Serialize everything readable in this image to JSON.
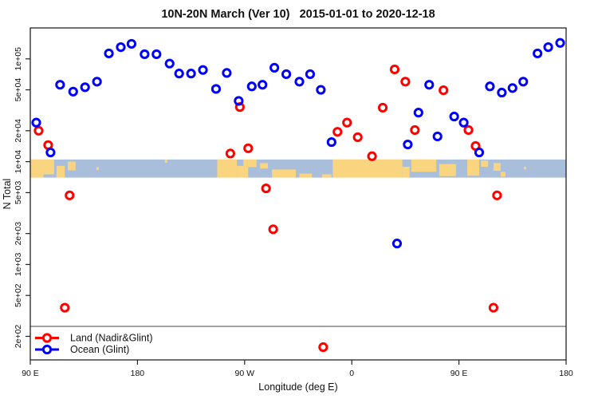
{
  "title": "10N-20N March (Ver 10)   2015-01-01 to 2020-12-18",
  "x_axis": {
    "label": "Longitude (deg E)",
    "domain": [
      90,
      540
    ],
    "ticks": [
      {
        "value": 90,
        "label": "90 E"
      },
      {
        "value": 180,
        "label": "180"
      },
      {
        "value": 270,
        "label": "90 W"
      },
      {
        "value": 360,
        "label": "0"
      },
      {
        "value": 450,
        "label": "90 E"
      },
      {
        "value": 540,
        "label": "180"
      }
    ]
  },
  "y_axis": {
    "label": "N Total",
    "scale": "log",
    "domain": [
      118,
      200000
    ],
    "ticks": [
      {
        "value": 200,
        "label": "2e+02"
      },
      {
        "value": 500,
        "label": "5e+02"
      },
      {
        "value": 1000,
        "label": "1e+03"
      },
      {
        "value": 2000,
        "label": "2e+03"
      },
      {
        "value": 5000,
        "label": "5e+03"
      },
      {
        "value": 10000,
        "label": "1e+04"
      },
      {
        "value": 20000,
        "label": "2e+04"
      },
      {
        "value": 50000,
        "label": "5e+04"
      },
      {
        "value": 100000,
        "label": "1e+05"
      }
    ]
  },
  "legend": {
    "entries": [
      {
        "label": "Land (Nadir&Glint)",
        "color": "#FF0000"
      },
      {
        "label": "Ocean (Glint)",
        "color": "#0000FF"
      }
    ]
  },
  "threshold_line": {
    "value": 250,
    "color": "#444444"
  },
  "map_band": {
    "top_value": 10500,
    "bottom_value": 7000,
    "ocean_color": "#A9BEDB",
    "land_color": "#FAD580",
    "land_patches": [
      [
        90,
        110,
        0,
        0.82
      ],
      [
        90,
        101,
        0.82,
        1
      ],
      [
        112,
        119,
        0.35,
        1
      ],
      [
        121.5,
        128,
        0.12,
        0.6
      ],
      [
        145.5,
        147.5,
        0.42,
        0.58
      ],
      [
        203,
        205,
        0,
        0.18
      ],
      [
        247,
        263.5,
        0,
        1
      ],
      [
        263.5,
        273,
        0.35,
        1
      ],
      [
        269,
        280,
        0,
        0.42
      ],
      [
        283,
        289.5,
        0.2,
        0.5
      ],
      [
        293,
        313,
        0.55,
        1
      ],
      [
        316,
        326.5,
        0.78,
        1
      ],
      [
        335,
        343,
        0.82,
        1
      ],
      [
        344,
        402.5,
        0,
        1
      ],
      [
        402.5,
        408.5,
        0.4,
        1
      ],
      [
        410,
        431,
        0,
        0.68
      ],
      [
        433.5,
        447.5,
        0.25,
        0.92
      ],
      [
        457,
        467,
        0,
        0.9
      ],
      [
        468.5,
        474.5,
        0.05,
        0.4
      ],
      [
        479,
        485,
        0.2,
        0.62
      ],
      [
        485,
        489,
        0.68,
        0.95
      ],
      [
        504.5,
        506.5,
        0.4,
        0.55
      ]
    ]
  },
  "chart_data": {
    "type": "scatter",
    "x_unit": "degrees east (axis wraps 90E to 180 over 450 deg)",
    "xlabel": "Longitude (deg E)",
    "ylabel": "N Total",
    "xlim": [
      90,
      540
    ],
    "ylim": [
      118,
      200000
    ],
    "grid": false,
    "legend_position": "bottom-left",
    "series": [
      {
        "name": "Land (Nadir&Glint)",
        "color": "#FF0000",
        "points": [
          [
            97,
            20000
          ],
          [
            105,
            14500
          ],
          [
            266,
            34000
          ],
          [
            258,
            12000
          ],
          [
            273,
            13500
          ],
          [
            396,
            79000
          ],
          [
            405,
            60000
          ],
          [
            386,
            33500
          ],
          [
            356,
            24000
          ],
          [
            348,
            19500
          ],
          [
            365,
            17300
          ],
          [
            377,
            11300
          ],
          [
            413,
            20300
          ],
          [
            437,
            49500
          ],
          [
            458,
            20300
          ],
          [
            464,
            14200
          ],
          [
            123,
            4700
          ],
          [
            288,
            5500
          ],
          [
            294,
            2200
          ],
          [
            119,
            380
          ],
          [
            482,
            4700
          ],
          [
            479,
            380
          ],
          [
            336,
            157
          ]
        ]
      },
      {
        "name": "Ocean (Glint)",
        "color": "#0000FF",
        "points": [
          [
            156,
            113000
          ],
          [
            166,
            130000
          ],
          [
            175,
            140000
          ],
          [
            186,
            111000
          ],
          [
            196,
            111000
          ],
          [
            115,
            56000
          ],
          [
            126,
            48000
          ],
          [
            136,
            53000
          ],
          [
            146,
            60000
          ],
          [
            95,
            24000
          ],
          [
            107,
            12300
          ],
          [
            207,
            90000
          ],
          [
            215,
            72000
          ],
          [
            225,
            72000
          ],
          [
            235,
            78000
          ],
          [
            246,
            51000
          ],
          [
            255,
            73000
          ],
          [
            265,
            39000
          ],
          [
            276,
            54000
          ],
          [
            285,
            56000
          ],
          [
            295,
            82000
          ],
          [
            305,
            71000
          ],
          [
            316,
            60000
          ],
          [
            325,
            71000
          ],
          [
            334,
            50000
          ],
          [
            343,
            15500
          ],
          [
            407,
            14700
          ],
          [
            416,
            30000
          ],
          [
            425,
            56000
          ],
          [
            476,
            54000
          ],
          [
            486,
            47000
          ],
          [
            495,
            52000
          ],
          [
            504,
            60000
          ],
          [
            516,
            113000
          ],
          [
            525,
            130000
          ],
          [
            535,
            143000
          ],
          [
            446,
            27500
          ],
          [
            454,
            24000
          ],
          [
            432,
            17600
          ],
          [
            467,
            12300
          ],
          [
            398,
            1600
          ]
        ]
      }
    ]
  }
}
